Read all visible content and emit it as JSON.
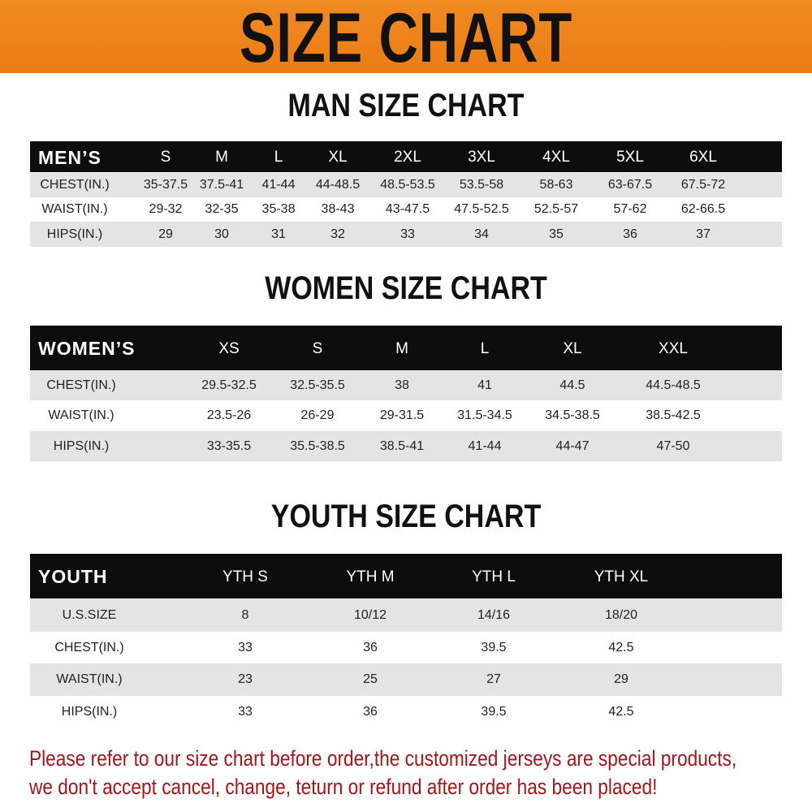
{
  "banner": {
    "title": "SIZE CHART",
    "color": "#ee841c"
  },
  "men": {
    "heading": "MAN SIZE CHART",
    "header_label": "MEN’S",
    "sizes": [
      "S",
      "M",
      "L",
      "XL",
      "2XL",
      "3XL",
      "4XL",
      "5XL",
      "6XL"
    ],
    "rows": [
      {
        "label": "CHEST(IN.)",
        "values": [
          "35-37.5",
          "37.5-41",
          "41-44",
          "44-48.5",
          "48.5-53.5",
          "53.5-58",
          "58-63",
          "63-67.5",
          "67.5-72"
        ]
      },
      {
        "label": "WAIST(IN.)",
        "values": [
          "29-32",
          "32-35",
          "35-38",
          "38-43",
          "43-47.5",
          "47.5-52.5",
          "52.5-57",
          "57-62",
          "62-66.5"
        ]
      },
      {
        "label": "HIPS(IN.)",
        "values": [
          "29",
          "30",
          "31",
          "32",
          "33",
          "34",
          "35",
          "36",
          "37"
        ]
      }
    ]
  },
  "women": {
    "heading": "WOMEN SIZE CHART",
    "header_label": "WOMEN’S",
    "sizes": [
      "XS",
      "S",
      "M",
      "L",
      "XL",
      "XXL"
    ],
    "rows": [
      {
        "label": "CHEST(IN.)",
        "values": [
          "29.5-32.5",
          "32.5-35.5",
          "38",
          "41",
          "44.5",
          "44.5-48.5"
        ]
      },
      {
        "label": "WAIST(IN.)",
        "values": [
          "23.5-26",
          "26-29",
          "29-31.5",
          "31.5-34.5",
          "34.5-38.5",
          "38.5-42.5"
        ]
      },
      {
        "label": "HIPS(IN.)",
        "values": [
          "33-35.5",
          "35.5-38.5",
          "38.5-41",
          "41-44",
          "44-47",
          "47-50"
        ]
      }
    ]
  },
  "youth": {
    "heading": "YOUTH SIZE CHART",
    "header_label": "YOUTH",
    "sizes": [
      "YTH S",
      "YTH M",
      "YTH L",
      "YTH XL"
    ],
    "rows": [
      {
        "label": "U.S.SIZE",
        "values": [
          "8",
          "10/12",
          "14/16",
          "18/20"
        ]
      },
      {
        "label": "CHEST(IN.)",
        "values": [
          "33",
          "36",
          "39.5",
          "42.5"
        ]
      },
      {
        "label": "WAIST(IN.)",
        "values": [
          "23",
          "25",
          "27",
          "29"
        ]
      },
      {
        "label": "HIPS(IN.)",
        "values": [
          "33",
          "36",
          "39.5",
          "42.5"
        ]
      }
    ]
  },
  "notice": {
    "line1": "Please refer to our size chart before order,the customized jerseys are special products,",
    "line2": "we don't accept cancel, change, teturn or refund after order has been placed!",
    "color": "#a3161a"
  }
}
